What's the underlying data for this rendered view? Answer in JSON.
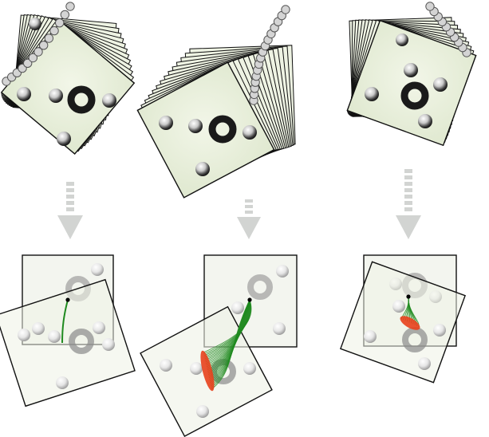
{
  "colors": {
    "card_fill": "#eef3e3",
    "card_stroke": "#1a1a1a",
    "bead_stroke": "#555555",
    "bead_fill": "#cccccc",
    "arrow": "#d2d4d2",
    "trajectory": "#1f8a1f",
    "endpoint_cluster": "#e8401c",
    "pivot": "#000000",
    "page_background": "#ffffff"
  },
  "panels": [
    {
      "name": "panel-left",
      "stack_label": "rotation-sequence",
      "result_label": "registration-overlay",
      "arrow_icon": "down-arrow-icon"
    },
    {
      "name": "panel-middle",
      "stack_label": "rotation-sequence",
      "result_label": "registration-overlay",
      "arrow_icon": "down-arrow-icon"
    },
    {
      "name": "panel-right",
      "stack_label": "rotation-sequence",
      "result_label": "registration-overlay",
      "arrow_icon": "down-arrow-icon"
    }
  ]
}
